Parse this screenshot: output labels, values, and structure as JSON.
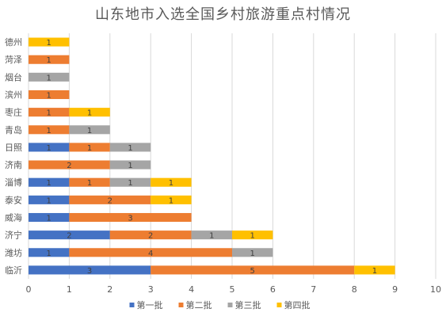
{
  "chart_data": {
    "type": "bar",
    "orientation": "horizontal",
    "stacked": true,
    "title": "山东地市入选全国乡村旅游重点村情况",
    "categories": [
      "德州",
      "菏泽",
      "烟台",
      "滨州",
      "枣庄",
      "青岛",
      "日照",
      "济南",
      "淄博",
      "泰安",
      "威海",
      "济宁",
      "潍坊",
      "临沂"
    ],
    "series": [
      {
        "name": "第一批",
        "color": "#4472C4",
        "values": [
          0,
          0,
          0,
          0,
          0,
          0,
          1,
          0,
          1,
          1,
          1,
          2,
          1,
          3
        ]
      },
      {
        "name": "第二批",
        "color": "#ED7D31",
        "values": [
          0,
          1,
          0,
          1,
          1,
          1,
          1,
          2,
          1,
          2,
          3,
          2,
          4,
          5
        ]
      },
      {
        "name": "第三批",
        "color": "#A5A5A5",
        "values": [
          0,
          0,
          1,
          0,
          0,
          1,
          1,
          1,
          1,
          0,
          0,
          1,
          1,
          0
        ]
      },
      {
        "name": "第四批",
        "color": "#FFC000",
        "values": [
          1,
          0,
          0,
          0,
          1,
          0,
          0,
          0,
          1,
          1,
          0,
          1,
          0,
          1
        ]
      }
    ],
    "xlim": [
      0,
      10
    ],
    "xticks": [
      0,
      1,
      2,
      3,
      4,
      5,
      6,
      7,
      8,
      9,
      10
    ],
    "xlabel": "",
    "ylabel": "",
    "grid": "vertical",
    "legend": "bottom",
    "data_labels": true
  }
}
